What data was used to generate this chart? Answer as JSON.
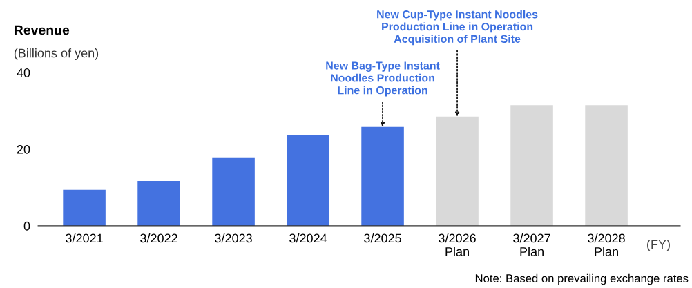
{
  "chart_data": {
    "type": "bar",
    "title": "Revenue",
    "ylabel": "(Billions of yen)",
    "xlabel": "(FY)",
    "categories": [
      "3/2021",
      "3/2022",
      "3/2023",
      "3/2024",
      "3/2025",
      "3/2026\nPlan",
      "3/2027\nPlan",
      "3/2028\nPlan"
    ],
    "values": [
      9.4,
      11.7,
      17.7,
      23.8,
      25.8,
      28.5,
      31.5,
      31.5
    ],
    "colors": [
      "#4472e0",
      "#4472e0",
      "#4472e0",
      "#4472e0",
      "#4472e0",
      "#d9d9d9",
      "#d9d9d9",
      "#d9d9d9"
    ],
    "ylim": [
      0,
      40
    ],
    "yticks": [
      0,
      20,
      40
    ],
    "grid": false,
    "legend": false,
    "annotations": [
      {
        "text": "New Bag-Type Instant\nNoodles Production\nLine in Operation",
        "x": "3/2025",
        "y": 25.8
      },
      {
        "text": "New Cup-Type Instant Noodles\nProduction Line in Operation\nAcquisition of Plant Site",
        "x": "3/2026\nPlan",
        "y": 28.5
      },
      "Note: Based on prevailing exchange rates"
    ]
  }
}
